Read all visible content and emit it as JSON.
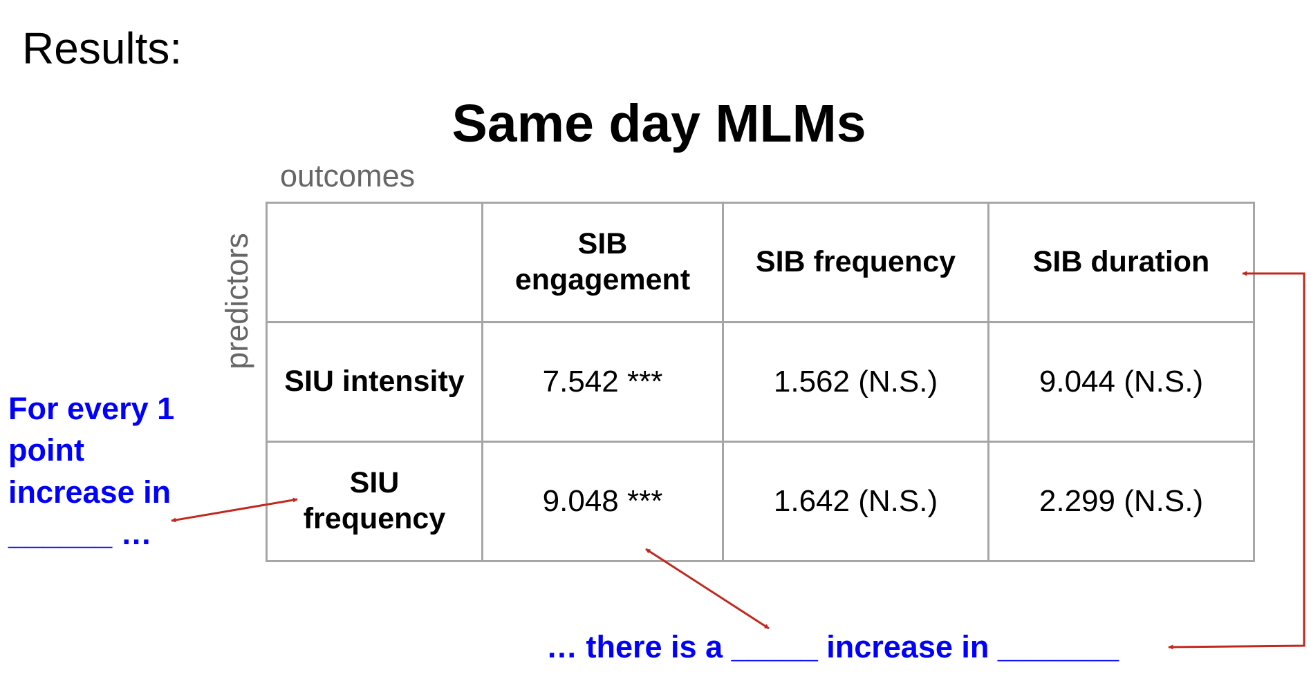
{
  "heading": "Results:",
  "title": "Same day MLMs",
  "outcomes_label": "outcomes",
  "predictors_label": "predictors",
  "table": {
    "header": [
      "",
      "SIB engagement",
      "SIB frequency",
      "SIB duration"
    ],
    "rows": [
      {
        "label": "SIU intensity",
        "values": [
          "7.542 ***",
          "1.562 (N.S.)",
          "9.044 (N.S.)"
        ]
      },
      {
        "label": "SIU frequency",
        "values": [
          "9.048 ***",
          "1.642 (N.S.)",
          "2.299 (N.S.)"
        ]
      }
    ]
  },
  "annotations": {
    "left_note": "For every 1 point increase in ______ …",
    "bottom_note": "… there is a _____ increase in _______"
  },
  "colors": {
    "annotation_text": "#0000ff",
    "arrow": "#c0281e",
    "axis_label": "#666666",
    "table_border": "#a6a6a6"
  }
}
